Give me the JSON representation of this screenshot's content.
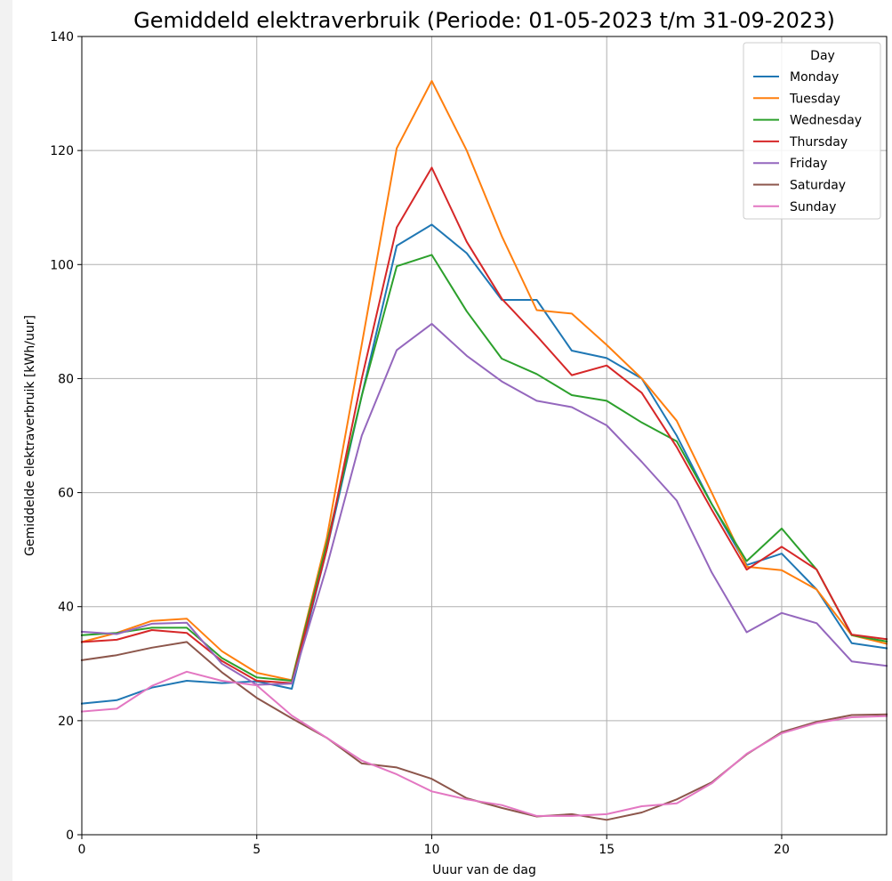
{
  "chart_data": {
    "type": "line",
    "title": "Gemiddeld elektraverbruik (Periode: 01-05-2023 t/m 31-09-2023)",
    "xlabel": "Uuur van de dag",
    "ylabel": "Gemiddelde elektraverbruik [kWh/uur]",
    "xlim": [
      0,
      23
    ],
    "ylim": [
      0,
      140
    ],
    "x_ticks": [
      0,
      5,
      10,
      15,
      20
    ],
    "y_ticks": [
      0,
      20,
      40,
      60,
      80,
      100,
      120,
      140
    ],
    "grid": true,
    "legend": {
      "title": "Day",
      "placement": "top-right"
    },
    "x": [
      0,
      1,
      2,
      3,
      4,
      5,
      6,
      7,
      8,
      9,
      10,
      11,
      12,
      13,
      14,
      15,
      16,
      17,
      18,
      19,
      20,
      21,
      22,
      23
    ],
    "series": [
      {
        "name": "Monday",
        "color": "#1f77b4",
        "values": [
          23.0,
          23.6,
          25.8,
          27.0,
          26.6,
          26.9,
          25.6,
          50.0,
          77.0,
          103.3,
          107.0,
          102.0,
          93.8,
          93.8,
          84.9,
          83.6,
          80.0,
          70.0,
          58.0,
          47.3,
          49.3,
          43.0,
          33.6,
          32.7
        ]
      },
      {
        "name": "Tuesday",
        "color": "#ff7f0e",
        "values": [
          33.8,
          35.4,
          37.5,
          37.9,
          32.2,
          28.4,
          27.1,
          52.0,
          86.0,
          120.4,
          132.2,
          120.0,
          105.0,
          92.0,
          91.4,
          85.9,
          80.0,
          72.6,
          60.0,
          47.0,
          46.4,
          43.0,
          35.0,
          33.5
        ]
      },
      {
        "name": "Wednesday",
        "color": "#2ca02c",
        "values": [
          35.0,
          35.4,
          36.3,
          36.3,
          31.0,
          27.6,
          27.0,
          51.0,
          77.0,
          99.7,
          101.7,
          91.8,
          83.5,
          80.8,
          77.1,
          76.1,
          72.3,
          69.0,
          58.0,
          48.0,
          53.7,
          46.5,
          35.0,
          33.9
        ]
      },
      {
        "name": "Thursday",
        "color": "#d62728",
        "values": [
          33.8,
          34.2,
          35.9,
          35.4,
          30.5,
          27.0,
          26.6,
          50.0,
          80.0,
          106.5,
          117.0,
          104.0,
          94.0,
          87.5,
          80.6,
          82.3,
          77.5,
          68.0,
          57.0,
          46.5,
          50.5,
          46.5,
          35.1,
          34.3
        ]
      },
      {
        "name": "Friday",
        "color": "#9467bd",
        "values": [
          35.6,
          35.2,
          37.0,
          37.2,
          30.0,
          26.3,
          26.5,
          47.0,
          70.0,
          85.0,
          89.6,
          84.0,
          79.5,
          76.1,
          75.0,
          71.8,
          65.4,
          58.6,
          46.0,
          35.5,
          38.9,
          37.1,
          30.4,
          29.6
        ]
      },
      {
        "name": "Saturday",
        "color": "#8c564b",
        "values": [
          30.6,
          31.5,
          32.8,
          33.8,
          28.5,
          24.0,
          20.4,
          17.0,
          12.5,
          11.8,
          9.8,
          6.4,
          4.7,
          3.2,
          3.6,
          2.6,
          3.9,
          6.2,
          9.2,
          14.1,
          18.0,
          19.8,
          21.0,
          21.1
        ]
      },
      {
        "name": "Sunday",
        "color": "#e377c2",
        "values": [
          21.6,
          22.1,
          26.1,
          28.6,
          27.0,
          26.2,
          20.9,
          17.0,
          13.0,
          10.6,
          7.6,
          6.2,
          5.2,
          3.3,
          3.3,
          3.6,
          5.0,
          5.5,
          9.0,
          14.2,
          17.8,
          19.6,
          20.6,
          20.8
        ]
      }
    ]
  }
}
